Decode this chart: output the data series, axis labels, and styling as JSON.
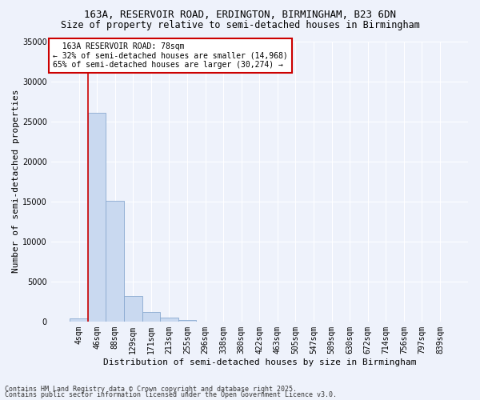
{
  "title_line1": "163A, RESERVOIR ROAD, ERDINGTON, BIRMINGHAM, B23 6DN",
  "title_line2": "Size of property relative to semi-detached houses in Birmingham",
  "xlabel": "Distribution of semi-detached houses by size in Birmingham",
  "ylabel": "Number of semi-detached properties",
  "annotation_title": "163A RESERVOIR ROAD: 78sqm",
  "annotation_line2": "← 32% of semi-detached houses are smaller (14,968)",
  "annotation_line3": "65% of semi-detached houses are larger (30,274) →",
  "footer_line1": "Contains HM Land Registry data © Crown copyright and database right 2025.",
  "footer_line2": "Contains public sector information licensed under the Open Government Licence v3.0.",
  "bin_labels": [
    "4sqm",
    "46sqm",
    "88sqm",
    "129sqm",
    "171sqm",
    "213sqm",
    "255sqm",
    "296sqm",
    "338sqm",
    "380sqm",
    "422sqm",
    "463sqm",
    "505sqm",
    "547sqm",
    "589sqm",
    "630sqm",
    "672sqm",
    "714sqm",
    "756sqm",
    "797sqm",
    "839sqm"
  ],
  "bin_values": [
    400,
    26100,
    15100,
    3200,
    1200,
    450,
    200,
    0,
    0,
    0,
    0,
    0,
    0,
    0,
    0,
    0,
    0,
    0,
    0,
    0,
    0
  ],
  "bar_color": "#c9d9f0",
  "bar_edge_color": "#8aaad0",
  "vline_color": "#cc0000",
  "vline_x": 0.5,
  "ylim": [
    0,
    35000
  ],
  "yticks": [
    0,
    5000,
    10000,
    15000,
    20000,
    25000,
    30000,
    35000
  ],
  "background_color": "#eef2fb",
  "grid_color": "#ffffff",
  "annotation_box_facecolor": "#ffffff",
  "annotation_box_edgecolor": "#cc0000",
  "title_fontsize": 9,
  "subtitle_fontsize": 8.5,
  "axis_label_fontsize": 8,
  "tick_fontsize": 7,
  "annotation_fontsize": 7,
  "footer_fontsize": 6
}
